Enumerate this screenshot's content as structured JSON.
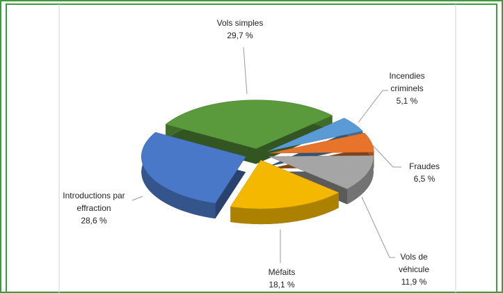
{
  "chart_data": {
    "type": "pie",
    "categories": [
      "Vols simples",
      "Incendies criminels",
      "Fraudes",
      "Vols de véhicule",
      "Méfaits",
      "Introductions par effraction"
    ],
    "values": [
      29.7,
      5.1,
      6.5,
      11.9,
      18.1,
      28.6
    ],
    "value_labels": [
      "29,7 %",
      "5,1 %",
      "6,5 %",
      "11,9 %",
      "18,1 %",
      "28,6 %"
    ],
    "colors": [
      "#5b9a3c",
      "#5b9bd5",
      "#e8742c",
      "#a5a5a5",
      "#f5b800",
      "#4a78c8"
    ]
  }
}
